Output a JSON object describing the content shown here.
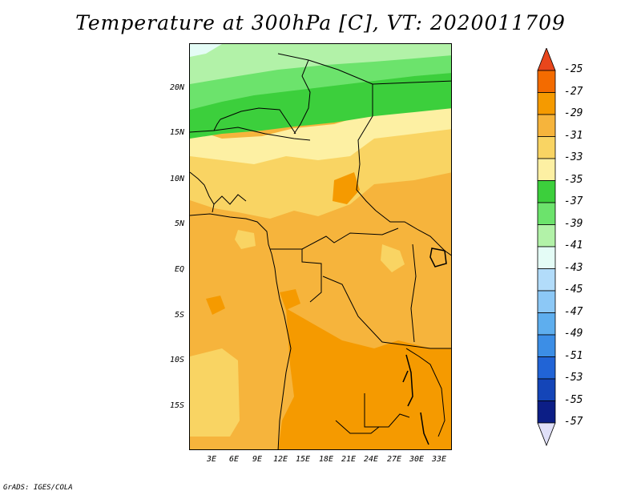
{
  "title": "Temperature at 300hPa [C], VT: 2020011709",
  "credit": "GrADS: IGES/COLA",
  "lat_ticks": [
    "20N",
    "15N",
    "10N",
    "5N",
    "EQ",
    "5S",
    "10S",
    "15S"
  ],
  "lon_ticks": [
    "3E",
    "6E",
    "9E",
    "12E",
    "15E",
    "18E",
    "21E",
    "24E",
    "27E",
    "30E",
    "33E"
  ],
  "colorbar": {
    "labels": [
      "-25",
      "-27",
      "-29",
      "-31",
      "-33",
      "-35",
      "-37",
      "-39",
      "-41",
      "-43",
      "-45",
      "-47",
      "-49",
      "-51",
      "-53",
      "-55",
      "-57"
    ],
    "colors": [
      "#e8461c",
      "#f36b00",
      "#f59a00",
      "#f6b43c",
      "#f9d463",
      "#fdf0a3",
      "#3ccf3c",
      "#6ce36c",
      "#b2f2a8",
      "#e4fcf6",
      "#b2dcfa",
      "#8cc8f6",
      "#5eaeee",
      "#3c8ee6",
      "#2164d6",
      "#1445b8",
      "#0c1e86",
      "#e0e0f8"
    ]
  }
}
